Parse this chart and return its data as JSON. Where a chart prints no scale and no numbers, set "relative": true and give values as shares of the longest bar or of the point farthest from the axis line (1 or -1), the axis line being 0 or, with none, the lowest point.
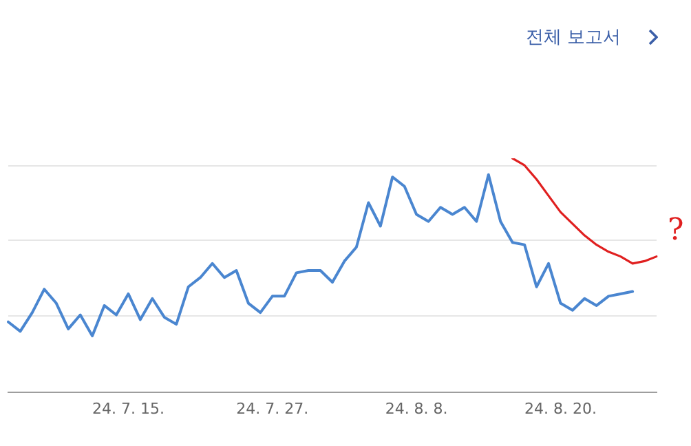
{
  "chart_data": {
    "type": "line",
    "relative": true,
    "legend": false,
    "marker": "none",
    "line_style": "solid",
    "categories": [
      null,
      null,
      null,
      null,
      null,
      null,
      null,
      null,
      null,
      null,
      "24. 7. 15.",
      null,
      null,
      null,
      null,
      null,
      null,
      null,
      null,
      null,
      null,
      null,
      "24. 7. 27.",
      null,
      null,
      null,
      null,
      null,
      null,
      null,
      null,
      null,
      null,
      null,
      "24. 8. 8.",
      null,
      null,
      null,
      null,
      null,
      null,
      null,
      null,
      null,
      null,
      null,
      "24. 8. 20.",
      null,
      null,
      null,
      null,
      null,
      null,
      null,
      null
    ],
    "series": [
      {
        "color": "#4a86d0",
        "values": [
          0.3,
          0.26,
          0.34,
          0.44,
          0.38,
          0.27,
          0.33,
          0.24,
          0.37,
          0.33,
          0.42,
          0.31,
          0.4,
          0.32,
          0.29,
          0.45,
          0.49,
          0.55,
          0.49,
          0.52,
          0.38,
          0.34,
          0.41,
          0.41,
          0.51,
          0.52,
          0.52,
          0.47,
          0.56,
          0.62,
          0.81,
          0.71,
          0.92,
          0.88,
          0.76,
          0.73,
          0.79,
          0.76,
          0.79,
          0.73,
          0.93,
          0.73,
          0.64,
          0.63,
          0.45,
          0.55,
          0.38,
          0.35,
          0.4,
          0.37,
          0.41,
          0.42,
          0.43,
          null,
          null
        ]
      },
      {
        "color": "#e02020",
        "values": [
          null,
          null,
          null,
          null,
          null,
          null,
          null,
          null,
          null,
          null,
          null,
          null,
          null,
          null,
          null,
          null,
          null,
          null,
          null,
          null,
          null,
          null,
          null,
          null,
          null,
          null,
          null,
          null,
          null,
          null,
          null,
          null,
          null,
          null,
          null,
          null,
          null,
          null,
          null,
          null,
          null,
          null,
          1,
          0.97,
          0.91,
          0.84,
          0.77,
          0.72,
          0.67,
          0.63,
          0.6,
          0.58,
          0.55,
          0.56,
          0.58
        ]
      }
    ],
    "ref_lines": [
      {
        "axis": "y",
        "value": 0.33,
        "color": "#e6e6e6"
      },
      {
        "axis": "y",
        "value": 0.65,
        "color": "#e6e6e6"
      },
      {
        "axis": "y",
        "value": 0.97,
        "color": "#e6e6e6"
      }
    ],
    "annotations": [
      "전체 보고서",
      "?"
    ]
  }
}
